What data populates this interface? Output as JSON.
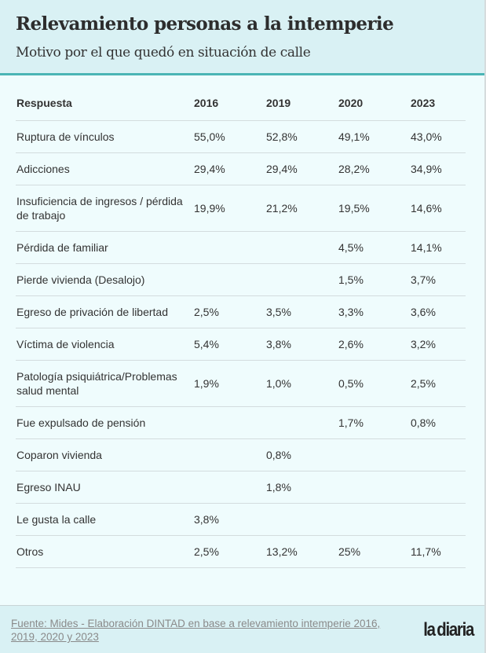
{
  "header": {
    "title": "Relevamiento personas a la intemperie",
    "subtitle": "Motivo por el que quedó en situación de calle"
  },
  "table": {
    "columns": [
      "Respuesta",
      "2016",
      "2019",
      "2020",
      "2023"
    ],
    "rows": [
      [
        "Ruptura de vínculos",
        "55,0%",
        "52,8%",
        "49,1%",
        "43,0%"
      ],
      [
        "Adicciones",
        "29,4%",
        "29,4%",
        "28,2%",
        "34,9%"
      ],
      [
        "Insuficiencia de ingresos / pérdida de trabajo",
        "19,9%",
        "21,2%",
        "19,5%",
        "14,6%"
      ],
      [
        "Pérdida de familiar",
        "",
        "",
        "4,5%",
        "14,1%"
      ],
      [
        "Pierde vivienda (Desalojo)",
        "",
        "",
        "1,5%",
        "3,7%"
      ],
      [
        "Egreso de privación de libertad",
        "2,5%",
        "3,5%",
        "3,3%",
        "3,6%"
      ],
      [
        "Víctima de violencia",
        "5,4%",
        "3,8%",
        "2,6%",
        "3,2%"
      ],
      [
        "Patología psiquiátrica/Problemas salud mental",
        "1,9%",
        "1,0%",
        "0,5%",
        "2,5%"
      ],
      [
        "Fue expulsado de pensión",
        "",
        "",
        "1,7%",
        "0,8%"
      ],
      [
        "Coparon vivienda",
        "",
        "0,8%",
        "",
        ""
      ],
      [
        "Egreso INAU",
        "",
        "1,8%",
        "",
        ""
      ],
      [
        "Le gusta la calle",
        "3,8%",
        "",
        "",
        ""
      ],
      [
        "Otros",
        "2,5%",
        "13,2%",
        "25%",
        "11,7%"
      ]
    ]
  },
  "footer": {
    "source": "Fuente: Mides - Elaboración DINTAD en base a relevamiento intemperie 2016, 2019, 2020 y 2023",
    "logo": "la diaria"
  },
  "colors": {
    "header_bg": "#d9f1f4",
    "accent": "#4ab5b5",
    "body_bg": "#effcfd"
  }
}
